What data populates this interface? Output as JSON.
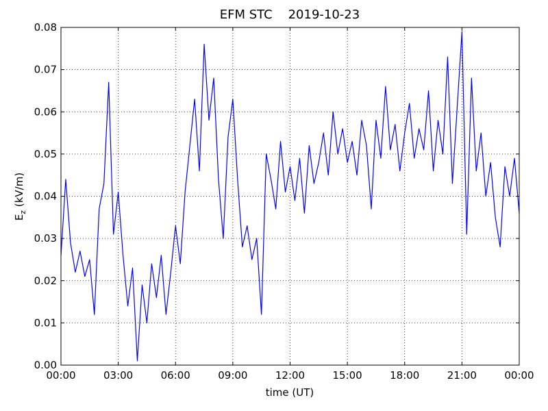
{
  "chart_data": {
    "type": "line",
    "title": "EFM STC    2019-10-23",
    "xlabel": "time (UT)",
    "ylabel": {
      "main": "E",
      "sub": "z",
      "rest": " (kV/m)"
    },
    "xlim": [
      0,
      24
    ],
    "xticks": [
      {
        "value": 0,
        "label": "00:00"
      },
      {
        "value": 3,
        "label": "03:00"
      },
      {
        "value": 6,
        "label": "06:00"
      },
      {
        "value": 9,
        "label": "09:00"
      },
      {
        "value": 12,
        "label": "12:00"
      },
      {
        "value": 15,
        "label": "15:00"
      },
      {
        "value": 18,
        "label": "18:00"
      },
      {
        "value": 21,
        "label": "21:00"
      },
      {
        "value": 24,
        "label": "00:00"
      }
    ],
    "ylim": [
      0,
      0.08
    ],
    "yticks": [
      {
        "value": 0,
        "label": "0.00"
      },
      0.01,
      0.02,
      0.03,
      0.04,
      0.05,
      0.06,
      0.07,
      0.08
    ],
    "grid": true,
    "x": [
      0,
      0.25,
      0.5,
      0.75,
      1,
      1.25,
      1.5,
      1.75,
      2,
      2.25,
      2.5,
      2.75,
      3,
      3.25,
      3.5,
      3.75,
      4,
      4.25,
      4.5,
      4.75,
      5,
      5.25,
      5.5,
      5.75,
      6,
      6.25,
      6.5,
      6.75,
      7,
      7.25,
      7.5,
      7.75,
      8,
      8.25,
      8.5,
      8.75,
      9,
      9.25,
      9.5,
      9.75,
      10,
      10.25,
      10.5,
      10.75,
      11,
      11.25,
      11.5,
      11.75,
      12,
      12.25,
      12.5,
      12.75,
      13,
      13.25,
      13.5,
      13.75,
      14,
      14.25,
      14.5,
      14.75,
      15,
      15.25,
      15.5,
      15.75,
      16,
      16.25,
      16.5,
      16.75,
      17,
      17.25,
      17.5,
      17.75,
      18,
      18.25,
      18.5,
      18.75,
      19,
      19.25,
      19.5,
      19.75,
      20,
      20.25,
      20.5,
      20.75,
      21,
      21.25,
      21.5,
      21.75,
      22,
      22.25,
      22.5,
      22.75,
      23,
      23.25,
      23.5,
      23.75,
      24
    ],
    "series": [
      {
        "color": "#0000ff",
        "values": [
          0.026,
          0.044,
          0.029,
          0.022,
          0.027,
          0.021,
          0.025,
          0.012,
          0.037,
          0.043,
          0.067,
          0.031,
          0.041,
          0.026,
          0.014,
          0.023,
          0.001,
          0.019,
          0.01,
          0.024,
          0.016,
          0.026,
          0.012,
          0.022,
          0.033,
          0.024,
          0.041,
          0.052,
          0.063,
          0.046,
          0.076,
          0.058,
          0.068,
          0.044,
          0.03,
          0.054,
          0.063,
          0.044,
          0.028,
          0.033,
          0.025,
          0.03,
          0.012,
          0.05,
          0.044,
          0.037,
          0.053,
          0.041,
          0.047,
          0.039,
          0.049,
          0.036,
          0.052,
          0.043,
          0.048,
          0.055,
          0.045,
          0.06,
          0.05,
          0.056,
          0.048,
          0.053,
          0.045,
          0.058,
          0.052,
          0.037,
          0.058,
          0.049,
          0.066,
          0.051,
          0.057,
          0.046,
          0.055,
          0.062,
          0.049,
          0.056,
          0.051,
          0.065,
          0.046,
          0.058,
          0.05,
          0.073,
          0.043,
          0.061,
          0.079,
          0.031,
          0.068,
          0.046,
          0.055,
          0.04,
          0.048,
          0.035,
          0.028,
          0.047,
          0.04,
          0.049,
          0.036
        ]
      }
    ]
  }
}
